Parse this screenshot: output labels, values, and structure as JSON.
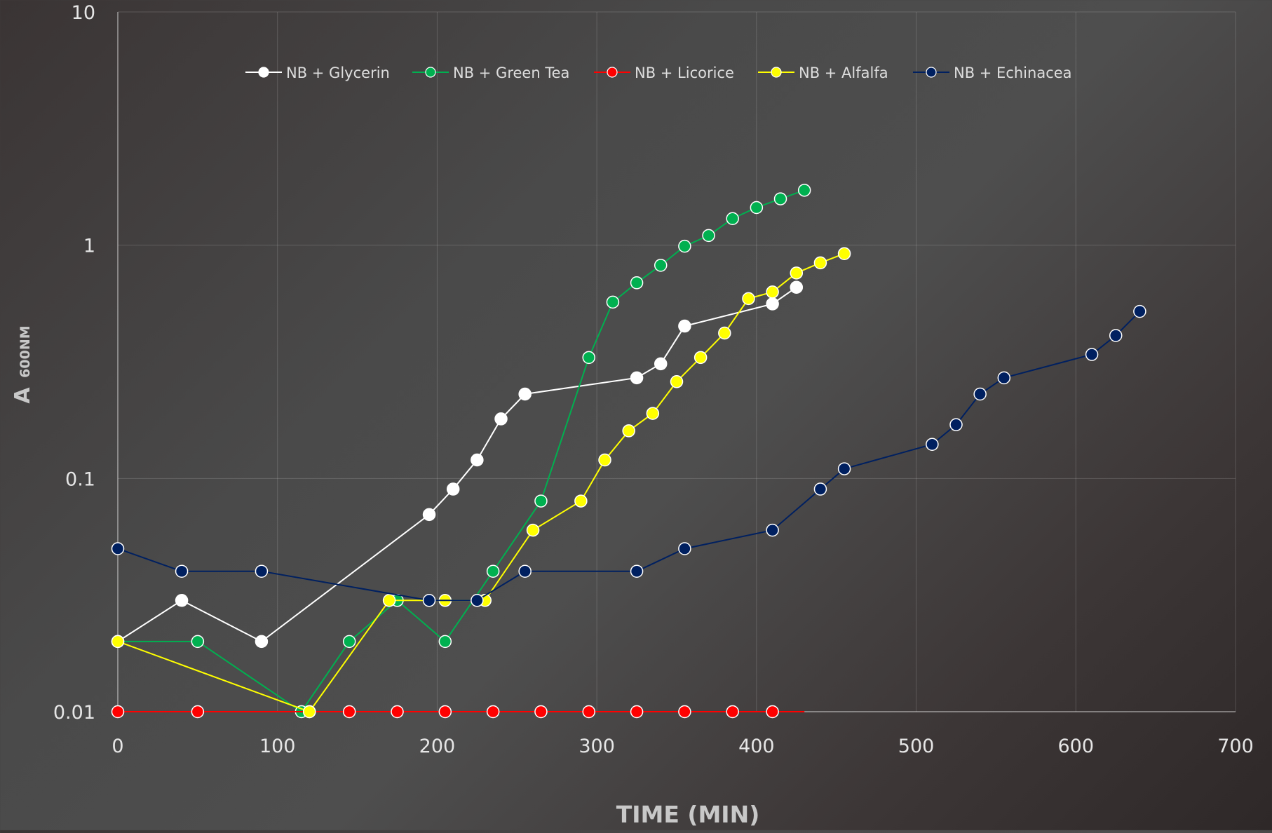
{
  "chart_data": {
    "type": "line",
    "title": "",
    "xlabel": "TIME (MIN)",
    "ylabel_main": "A",
    "ylabel_sub": "600NM",
    "xlim": [
      0,
      700
    ],
    "ylim": [
      0.01,
      10
    ],
    "yscale": "log",
    "xticks": [
      0,
      100,
      200,
      300,
      400,
      500,
      600,
      700
    ],
    "yticks": [
      0.01,
      0.1,
      1,
      10
    ],
    "ytick_labels": [
      "0.01",
      "0.1",
      "1",
      "10"
    ],
    "grid": true,
    "legend_position": "top",
    "series": [
      {
        "name": "NB + Glycerin",
        "color": "#ffffff",
        "points": [
          [
            0,
            0.02
          ],
          [
            40,
            0.03
          ],
          [
            90,
            0.02
          ],
          [
            195,
            0.07
          ],
          [
            210,
            0.09
          ],
          [
            225,
            0.12
          ],
          [
            240,
            0.18
          ],
          [
            255,
            0.23
          ],
          [
            325,
            0.27
          ],
          [
            340,
            0.31
          ],
          [
            355,
            0.45
          ],
          [
            410,
            0.56
          ],
          [
            425,
            0.66
          ]
        ]
      },
      {
        "name": "NB + Green Tea",
        "color": "#00b050",
        "points": [
          [
            0,
            0.02
          ],
          [
            50,
            0.02
          ],
          [
            115,
            0.01
          ],
          [
            145,
            0.02
          ],
          [
            175,
            0.03
          ],
          [
            205,
            0.02
          ],
          [
            235,
            0.04
          ],
          [
            265,
            0.08
          ],
          [
            295,
            0.33
          ],
          [
            310,
            0.57
          ],
          [
            325,
            0.69
          ],
          [
            340,
            0.82
          ],
          [
            355,
            0.99
          ],
          [
            370,
            1.1
          ],
          [
            385,
            1.3
          ],
          [
            400,
            1.45
          ],
          [
            415,
            1.58
          ],
          [
            430,
            1.72
          ]
        ]
      },
      {
        "name": "NB + Licorice",
        "color": "#ff0000",
        "points": [
          [
            0,
            0.01
          ],
          [
            50,
            0.01
          ],
          [
            120,
            0.01
          ],
          [
            145,
            0.01
          ],
          [
            175,
            0.01
          ],
          [
            205,
            0.01
          ],
          [
            235,
            0.01
          ],
          [
            265,
            0.01
          ],
          [
            295,
            0.01
          ],
          [
            325,
            0.01
          ],
          [
            355,
            0.01
          ],
          [
            385,
            0.01
          ],
          [
            410,
            0.01
          ]
        ],
        "line_to_x": 430
      },
      {
        "name": "NB + Alfalfa",
        "color": "#ffff00",
        "points": [
          [
            0,
            0.02
          ],
          [
            120,
            0.01
          ],
          [
            170,
            0.03
          ],
          [
            205,
            0.03
          ],
          [
            230,
            0.03
          ],
          [
            260,
            0.06
          ],
          [
            290,
            0.08
          ],
          [
            305,
            0.12
          ],
          [
            320,
            0.16
          ],
          [
            335,
            0.19
          ],
          [
            350,
            0.26
          ],
          [
            365,
            0.33
          ],
          [
            380,
            0.42
          ],
          [
            395,
            0.59
          ],
          [
            410,
            0.63
          ],
          [
            425,
            0.76
          ],
          [
            440,
            0.84
          ],
          [
            455,
            0.92
          ]
        ]
      },
      {
        "name": "NB + Echinacea",
        "color": "#002060",
        "points": [
          [
            0,
            0.05
          ],
          [
            40,
            0.04
          ],
          [
            90,
            0.04
          ],
          [
            195,
            0.03
          ],
          [
            225,
            0.03
          ],
          [
            255,
            0.04
          ],
          [
            325,
            0.04
          ],
          [
            355,
            0.05
          ],
          [
            410,
            0.06
          ],
          [
            440,
            0.09
          ],
          [
            455,
            0.11
          ],
          [
            510,
            0.14
          ],
          [
            525,
            0.17
          ],
          [
            540,
            0.23
          ],
          [
            555,
            0.27
          ],
          [
            610,
            0.34
          ],
          [
            625,
            0.41
          ],
          [
            640,
            0.52
          ]
        ]
      }
    ]
  }
}
